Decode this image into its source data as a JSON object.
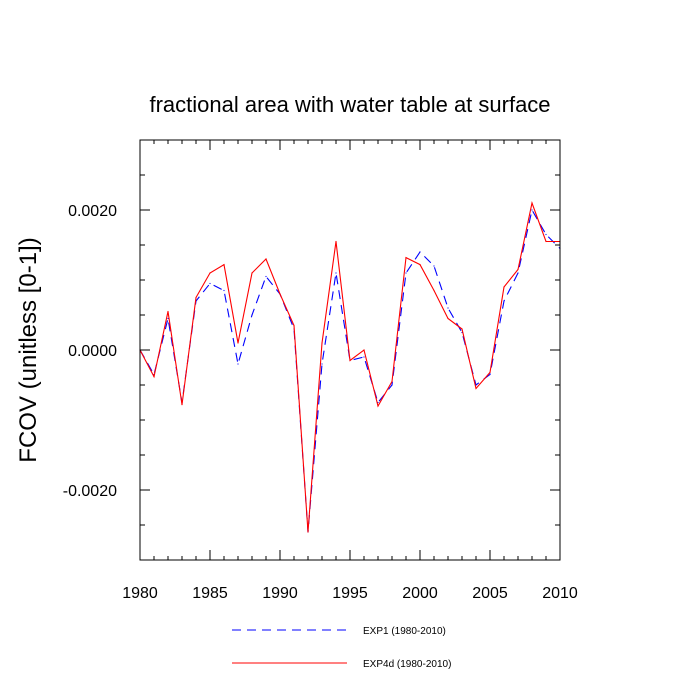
{
  "chart_data": {
    "type": "line",
    "title": "fractional area with water table at surface",
    "xlabel": "",
    "ylabel": "FCOV  (unitless [0-1])",
    "xlim": [
      1980,
      2010
    ],
    "ylim": [
      -0.003,
      0.003
    ],
    "x_ticks": [
      1980,
      1985,
      1990,
      1995,
      2000,
      2005,
      2010
    ],
    "x_tick_labels": [
      "1980",
      "1985",
      "1990",
      "1995",
      "2000",
      "2005",
      "2010"
    ],
    "y_ticks": [
      -0.002,
      0.0,
      0.002
    ],
    "y_tick_labels": [
      "-0.0020",
      "0.0000",
      "0.0020"
    ],
    "y_minor_step": 0.0005,
    "x": [
      1980,
      1981,
      1982,
      1983,
      1984,
      1985,
      1986,
      1987,
      1988,
      1989,
      1990,
      1991,
      1992,
      1993,
      1994,
      1995,
      1996,
      1997,
      1998,
      1999,
      2000,
      2001,
      2002,
      2003,
      2004,
      2005,
      2006,
      2007,
      2008,
      2009,
      2010
    ],
    "series": [
      {
        "name": "EXP1 (1980-2010)",
        "color": "#0000ff",
        "style": "dashed",
        "values": [
          0.0,
          -0.00035,
          0.00045,
          -0.00075,
          0.0007,
          0.00095,
          0.00085,
          -0.0002,
          0.0005,
          0.00105,
          0.0008,
          0.0003,
          -0.0026,
          -0.0002,
          0.0011,
          -0.00015,
          -0.0001,
          -0.00075,
          -0.0005,
          0.0011,
          0.0014,
          0.0012,
          0.0006,
          0.00025,
          -0.0005,
          -0.00035,
          0.0007,
          0.0011,
          0.002,
          0.00165,
          0.00145
        ]
      },
      {
        "name": "EXP4d (1980-2010)",
        "color": "#ff0000",
        "style": "solid",
        "values": [
          0.0,
          -0.00038,
          0.00055,
          -0.00078,
          0.00075,
          0.0011,
          0.00122,
          0.0001,
          0.0011,
          0.0013,
          0.0008,
          0.00035,
          -0.0026,
          0.0001,
          0.00155,
          -0.00015,
          0.0,
          -0.0008,
          -0.00045,
          0.00132,
          0.00122,
          0.00085,
          0.00045,
          0.0003,
          -0.00055,
          -0.00032,
          0.0009,
          0.00115,
          0.0021,
          0.00155,
          0.00155
        ]
      }
    ],
    "legend_position": "bottom-center"
  }
}
